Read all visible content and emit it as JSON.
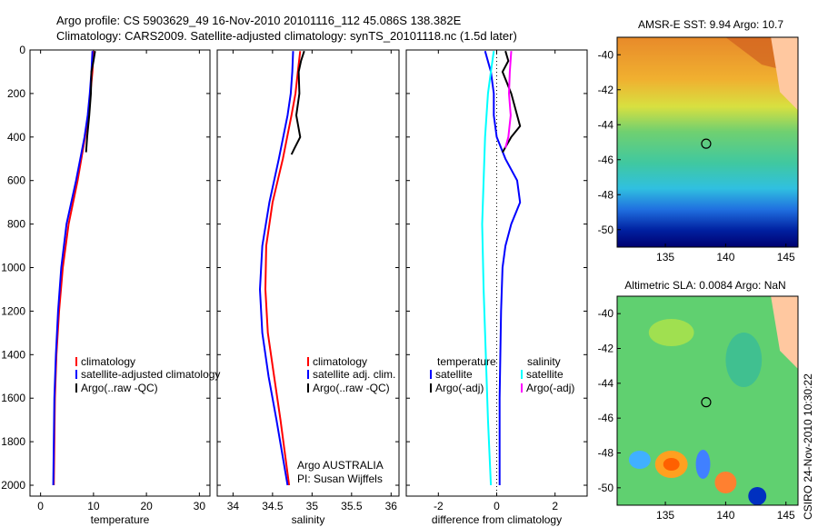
{
  "header": {
    "line1": "Argo profile: CS 5903629_49 16-Nov-2010 20101116_112 45.086S 138.382E",
    "line2": "Climatology: CARS2009. Satellite-adjusted climatology: synTS_20101118.nc (1.5d later)"
  },
  "credit": "CSIRO 24-Nov-2010 10:30:22",
  "colors": {
    "red": "#ff0000",
    "blue": "#0000ff",
    "black": "#000000",
    "cyan": "#00ffff",
    "magenta": "#ff00ff"
  },
  "chart_data": [
    {
      "id": "temperature",
      "type": "line",
      "xlabel": "temperature",
      "ylabel": "",
      "xlim": [
        -2,
        32
      ],
      "ylim": [
        2050,
        0
      ],
      "xticks": [
        0,
        10,
        20,
        30
      ],
      "yticks": [
        0,
        200,
        400,
        600,
        800,
        1000,
        1200,
        1400,
        1600,
        1800,
        2000
      ],
      "legend": {
        "placement": "lower-right",
        "entries": [
          "climatology",
          "satellite-adjusted climatology",
          "Argo(..raw -QC)"
        ]
      },
      "series": [
        {
          "name": "climatology",
          "color": "red",
          "x": [
            10.0,
            9.8,
            9.4,
            9.0,
            8.4,
            7.0,
            5.3,
            4.2,
            3.5,
            3.0,
            2.7,
            2.5
          ],
          "y": [
            5,
            100,
            200,
            300,
            400,
            600,
            800,
            1000,
            1200,
            1400,
            1600,
            2000
          ]
        },
        {
          "name": "satellite-adjusted climatology",
          "color": "blue",
          "x": [
            9.8,
            9.6,
            9.3,
            8.9,
            8.3,
            6.7,
            4.9,
            3.9,
            3.3,
            2.9,
            2.6,
            2.4
          ],
          "y": [
            5,
            100,
            200,
            300,
            400,
            600,
            800,
            1000,
            1200,
            1400,
            1600,
            2000
          ]
        },
        {
          "name": "Argo(..raw -QC)",
          "color": "black",
          "x": [
            10.3,
            10.0,
            9.6,
            9.5,
            9.2,
            8.8,
            8.6
          ],
          "y": [
            5,
            50,
            100,
            200,
            300,
            400,
            470
          ]
        }
      ]
    },
    {
      "id": "salinity",
      "type": "line",
      "xlabel": "salinity",
      "ylabel": "",
      "xlim": [
        33.8,
        36.1
      ],
      "ylim": [
        2050,
        0
      ],
      "xticks": [
        34,
        34.5,
        35,
        35.5,
        36
      ],
      "legend": {
        "placement": "lower-right",
        "entries": [
          "climatology",
          "satellite adj. clim.",
          "Argo(..raw -QC)"
        ]
      },
      "annotations": [
        "Argo AUSTRALIA",
        "PI: Susan Wijffels"
      ],
      "series": [
        {
          "name": "climatology",
          "color": "red",
          "x": [
            34.85,
            34.82,
            34.79,
            34.74,
            34.63,
            34.5,
            34.42,
            34.41,
            34.44,
            34.52,
            34.6,
            34.71
          ],
          "y": [
            5,
            100,
            200,
            300,
            500,
            700,
            900,
            1100,
            1300,
            1500,
            1700,
            2000
          ]
        },
        {
          "name": "satellite adj. clim.",
          "color": "blue",
          "x": [
            34.76,
            34.75,
            34.73,
            34.69,
            34.58,
            34.46,
            34.37,
            34.34,
            34.37,
            34.45,
            34.55,
            34.69
          ],
          "y": [
            5,
            100,
            200,
            300,
            500,
            700,
            900,
            1100,
            1300,
            1500,
            1700,
            2000
          ]
        },
        {
          "name": "Argo(..raw -QC)",
          "color": "black",
          "x": [
            34.9,
            34.86,
            34.83,
            34.84,
            34.8,
            34.85,
            34.78,
            34.74
          ],
          "y": [
            5,
            50,
            100,
            200,
            300,
            400,
            450,
            480
          ]
        }
      ]
    },
    {
      "id": "difference",
      "type": "line",
      "xlabel": "difference from climatology",
      "ylabel": "",
      "xlim": [
        -3.1,
        3.1
      ],
      "ylim": [
        2050,
        0
      ],
      "xticks": [
        -2,
        0,
        2
      ],
      "legend": {
        "placement": "lower",
        "columns": [
          {
            "heading": "temperature",
            "entries": [
              "satellite",
              "Argo(-adj)"
            ]
          },
          {
            "heading": "salinity",
            "entries": [
              "satellite",
              "Argo(-adj)"
            ]
          }
        ]
      },
      "series": [
        {
          "name": "temperature satellite",
          "color": "blue",
          "x": [
            -0.4,
            -0.2,
            -0.1,
            -0.1,
            0.0,
            0.3,
            0.7,
            0.8,
            0.5,
            0.3,
            0.2,
            0.15,
            0.1,
            0.1
          ],
          "y": [
            5,
            100,
            200,
            300,
            400,
            500,
            600,
            700,
            800,
            900,
            1000,
            1200,
            1600,
            2000
          ]
        },
        {
          "name": "temperature Argo(-adj)",
          "color": "black",
          "x": [
            0.3,
            0.4,
            0.2,
            0.5,
            0.8,
            0.5,
            0.2
          ],
          "y": [
            5,
            50,
            100,
            200,
            350,
            400,
            470
          ]
        },
        {
          "name": "salinity satellite",
          "color": "cyan",
          "x": [
            -0.1,
            -0.2,
            -0.3,
            -0.35,
            -0.4,
            -0.45,
            -0.5,
            -0.45,
            -0.4,
            -0.35,
            -0.3,
            -0.2
          ],
          "y": [
            5,
            100,
            200,
            300,
            400,
            600,
            800,
            1100,
            1300,
            1500,
            1700,
            2000
          ]
        },
        {
          "name": "salinity Argo(-adj)",
          "color": "magenta",
          "x": [
            0.5,
            0.45,
            0.42,
            0.48,
            0.4,
            0.3
          ],
          "y": [
            5,
            100,
            200,
            300,
            400,
            450
          ]
        }
      ]
    },
    {
      "id": "sst-map",
      "type": "heatmap",
      "title": "AMSR-E SST: 9.94 Argo: 10.7",
      "xlim": [
        131,
        146
      ],
      "ylim": [
        -51,
        -39
      ],
      "xticks": [
        135,
        140,
        145
      ],
      "yticks": [
        -40,
        -42,
        -44,
        -46,
        -48,
        -50
      ],
      "marker": {
        "lon": 138.382,
        "lat": -45.086
      }
    },
    {
      "id": "sla-map",
      "type": "heatmap",
      "title": "Altimetric SLA: 0.0084 Argo: NaN",
      "xlim": [
        131,
        146
      ],
      "ylim": [
        -51,
        -39
      ],
      "xticks": [
        135,
        140,
        145
      ],
      "yticks": [
        -40,
        -42,
        -44,
        -46,
        -48,
        -50
      ],
      "marker": {
        "lon": 138.382,
        "lat": -45.086
      }
    }
  ]
}
